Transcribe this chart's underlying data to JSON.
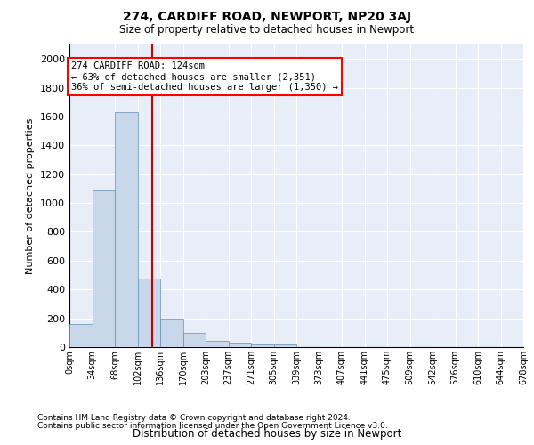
{
  "title": "274, CARDIFF ROAD, NEWPORT, NP20 3AJ",
  "subtitle": "Size of property relative to detached houses in Newport",
  "xlabel": "Distribution of detached houses by size in Newport",
  "ylabel": "Number of detached properties",
  "footnote1": "Contains HM Land Registry data © Crown copyright and database right 2024.",
  "footnote2": "Contains public sector information licensed under the Open Government Licence v3.0.",
  "bin_labels": [
    "0sqm",
    "34sqm",
    "68sqm",
    "102sqm",
    "136sqm",
    "170sqm",
    "203sqm",
    "237sqm",
    "271sqm",
    "305sqm",
    "339sqm",
    "373sqm",
    "407sqm",
    "441sqm",
    "475sqm",
    "509sqm",
    "542sqm",
    "576sqm",
    "610sqm",
    "644sqm",
    "678sqm"
  ],
  "bar_values": [
    160,
    1090,
    1630,
    475,
    200,
    100,
    45,
    30,
    20,
    20,
    0,
    0,
    0,
    0,
    0,
    0,
    0,
    0,
    0,
    0
  ],
  "bar_color": "#c8d8ea",
  "bar_edge_color": "#6090b0",
  "ylim_max": 2100,
  "yticks": [
    0,
    200,
    400,
    600,
    800,
    1000,
    1200,
    1400,
    1600,
    1800,
    2000
  ],
  "property_size_sqm": 124,
  "bin_width": 34,
  "num_bins": 20,
  "red_line_color": "#cc0000",
  "annotation_line1": "274 CARDIFF ROAD: 124sqm",
  "annotation_line2": "← 63% of detached houses are smaller (2,351)",
  "annotation_line3": "36% of semi-detached houses are larger (1,350) →",
  "background_color": "#e8eef8",
  "grid_color": "#ffffff"
}
